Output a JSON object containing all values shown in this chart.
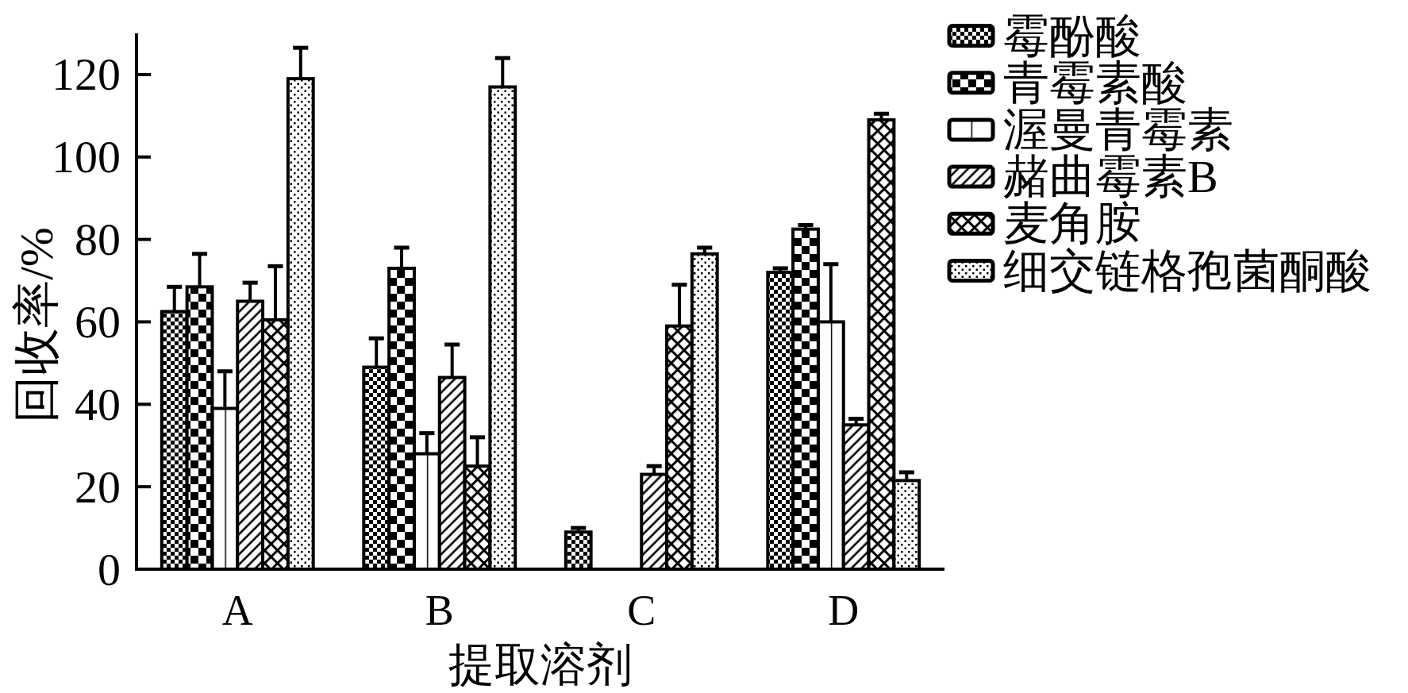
{
  "chart_data": {
    "type": "bar",
    "xlabel": "提取溶剂",
    "ylabel": "回收率/%",
    "categories": [
      "A",
      "B",
      "C",
      "D"
    ],
    "series": [
      {
        "name": "霉酚酸",
        "color": "#000000",
        "values": [
          62.5,
          49,
          9,
          72
        ],
        "errors": [
          6,
          7,
          1,
          1
        ]
      },
      {
        "name": "青霉素酸",
        "color": "#000000",
        "values": [
          68.5,
          73,
          null,
          82.5
        ],
        "errors": [
          8,
          5,
          null,
          1
        ]
      },
      {
        "name": "渥曼青霉素",
        "color": "#000000",
        "values": [
          39,
          28,
          null,
          60
        ],
        "errors": [
          9,
          5,
          null,
          14
        ]
      },
      {
        "name": "赭曲霉素B",
        "color": "#000000",
        "values": [
          65,
          46.5,
          23,
          35
        ],
        "errors": [
          4.5,
          8,
          2,
          1.5
        ]
      },
      {
        "name": "麦角胺",
        "color": "#000000",
        "values": [
          60.5,
          25,
          59,
          109
        ],
        "errors": [
          13,
          7,
          10,
          1.5
        ]
      },
      {
        "name": "细交链格孢菌酮酸",
        "color": "#000000",
        "values": [
          119,
          117,
          76.5,
          21.5
        ],
        "errors": [
          7.5,
          7,
          1.5,
          2
        ]
      }
    ],
    "ylim": [
      0,
      130
    ],
    "yticks": [
      0,
      20,
      40,
      60,
      80,
      100,
      120
    ],
    "legend": "top right"
  }
}
